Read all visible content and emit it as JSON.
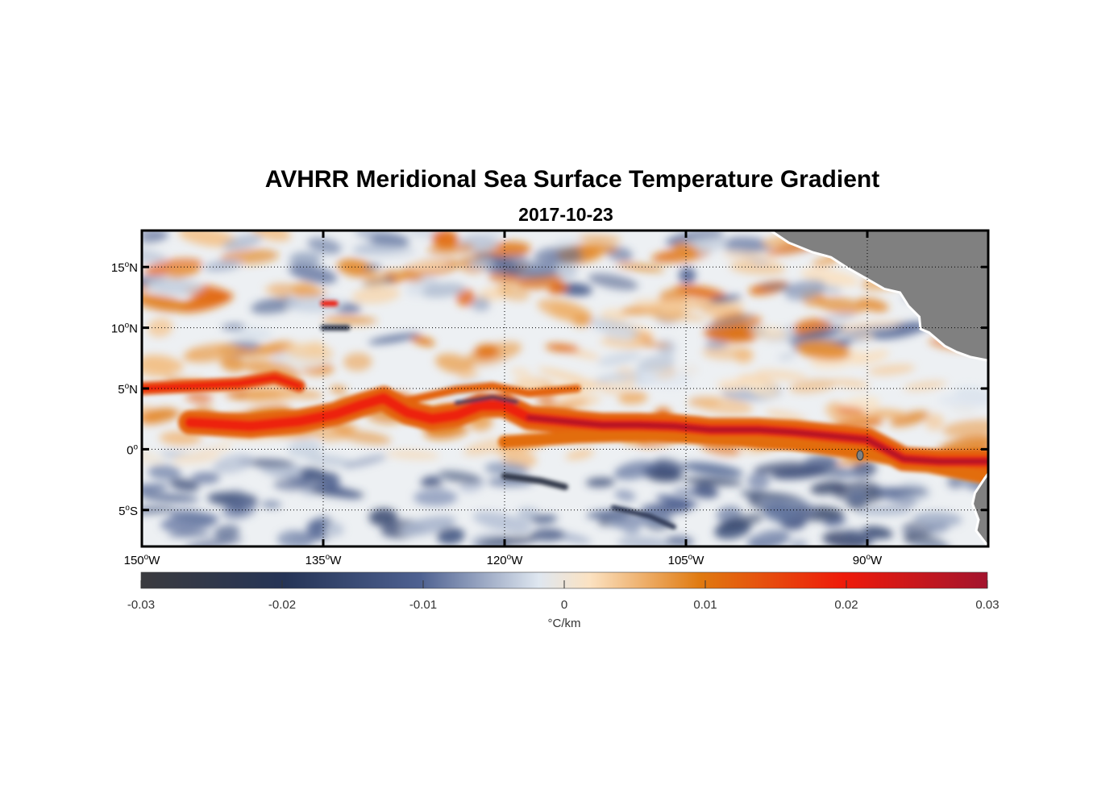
{
  "chart_data": {
    "type": "heatmap",
    "title": "AVHRR Meridional Sea Surface Temperature Gradient",
    "subtitle": "2017-10-23",
    "x_axis": {
      "range": [
        -150,
        -80
      ],
      "ticks": [
        {
          "value": -150,
          "deg": "150",
          "hemi": "W"
        },
        {
          "value": -135,
          "deg": "135",
          "hemi": "W"
        },
        {
          "value": -120,
          "deg": "120",
          "hemi": "W"
        },
        {
          "value": -105,
          "deg": "105",
          "hemi": "W"
        },
        {
          "value": -90,
          "deg": "90",
          "hemi": "W"
        }
      ]
    },
    "y_axis": {
      "range": [
        -8,
        18
      ],
      "ticks": [
        {
          "value": 15,
          "deg": "15",
          "hemi": "N"
        },
        {
          "value": 10,
          "deg": "10",
          "hemi": "N"
        },
        {
          "value": 5,
          "deg": "5",
          "hemi": "N"
        },
        {
          "value": 0,
          "deg": "0",
          "hemi": ""
        },
        {
          "value": -5,
          "deg": "5",
          "hemi": "S"
        }
      ]
    },
    "grid": true,
    "colorbar": {
      "range": [
        -0.03,
        0.03
      ],
      "ticks": [
        {
          "value": -0.03,
          "label": "-0.03"
        },
        {
          "value": -0.02,
          "label": "-0.02"
        },
        {
          "value": -0.01,
          "label": "-0.01"
        },
        {
          "value": 0,
          "label": "0"
        },
        {
          "value": 0.01,
          "label": "0.01"
        },
        {
          "value": 0.02,
          "label": "0.02"
        },
        {
          "value": 0.03,
          "label": "0.03"
        }
      ],
      "units": "°C/km",
      "colors": [
        "#3b3b3f",
        "#253456",
        "#4e6191",
        "#dfe7f0",
        "#fbe2c2",
        "#e07a10",
        "#ee1a0a",
        "#a3142e"
      ]
    },
    "colors": {
      "land": "#808080",
      "frame": "#000000"
    }
  }
}
